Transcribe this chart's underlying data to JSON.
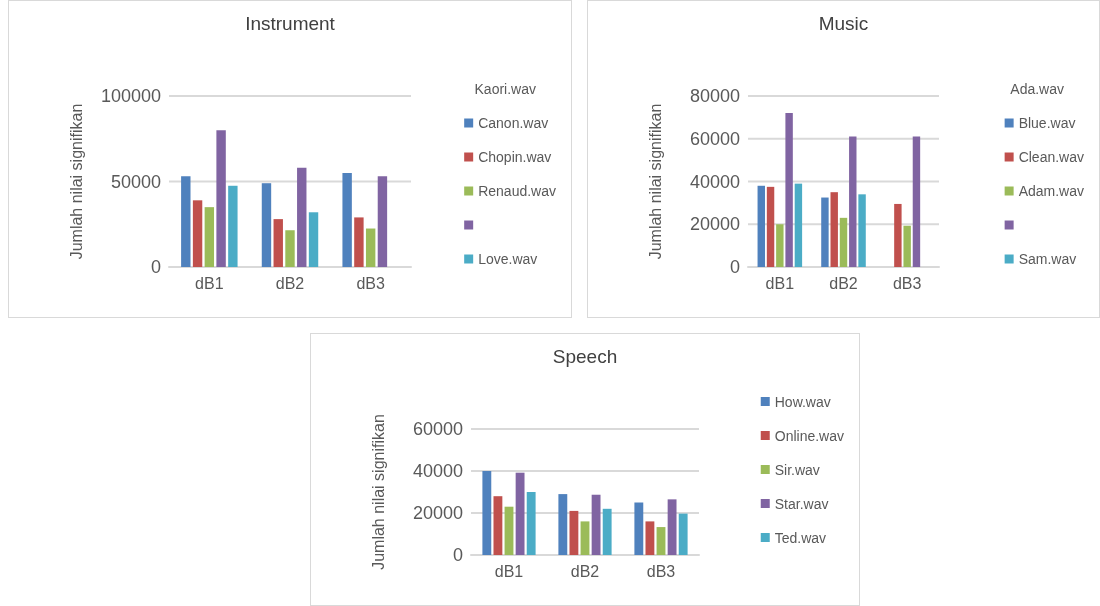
{
  "chart_data": [
    {
      "type": "bar",
      "title": "Instrument",
      "ylabel": "Jumlah nilai signifikan",
      "legend_title": "Kaori.wav",
      "categories": [
        "dB1",
        "dB2",
        "dB3"
      ],
      "series": [
        {
          "name": "Canon.wav",
          "color": "#4f81bd",
          "values": [
            53000,
            49000,
            55000
          ]
        },
        {
          "name": "Chopin.wav",
          "color": "#c0504d",
          "values": [
            39000,
            28000,
            29000
          ]
        },
        {
          "name": "Renaud.wav",
          "color": "#9bbb59",
          "values": [
            35000,
            21500,
            22500
          ]
        },
        {
          "color": "#8064a2",
          "values": [
            80000,
            58000,
            53000
          ]
        },
        {
          "name": "Love.wav",
          "color": "#4bacc6",
          "values": [
            47500,
            32000,
            null
          ]
        }
      ],
      "ylim": [
        0,
        100000
      ],
      "yticks": [
        0,
        50000,
        100000
      ],
      "grid": "y",
      "legend": "right"
    },
    {
      "type": "bar",
      "title": "Music",
      "ylabel": "Jumlah nilai signifikan",
      "legend_title": "Ada.wav",
      "categories": [
        "dB1",
        "dB2",
        "dB3"
      ],
      "series": [
        {
          "name": "Blue.wav",
          "color": "#4f81bd",
          "values": [
            38000,
            32500,
            null
          ]
        },
        {
          "name": "Clean.wav",
          "color": "#c0504d",
          "values": [
            37500,
            35000,
            29500
          ]
        },
        {
          "name": "Adam.wav",
          "color": "#9bbb59",
          "values": [
            20000,
            23000,
            19300
          ]
        },
        {
          "color": "#8064a2",
          "values": [
            72000,
            61000,
            61000
          ]
        },
        {
          "name": "Sam.wav",
          "color": "#4bacc6",
          "values": [
            39000,
            34000,
            null
          ]
        }
      ],
      "ylim": [
        0,
        80000
      ],
      "yticks": [
        0,
        20000,
        40000,
        60000,
        80000
      ],
      "grid": "y",
      "legend": "right"
    },
    {
      "type": "bar",
      "title": "Speech",
      "ylabel": "Jumlah nilai signifikan",
      "categories": [
        "dB1",
        "dB2",
        "dB3"
      ],
      "series": [
        {
          "name": "How.wav",
          "color": "#4f81bd",
          "values": [
            40000,
            29000,
            25000
          ]
        },
        {
          "name": "Online.wav",
          "color": "#c0504d",
          "values": [
            28000,
            21000,
            16000
          ]
        },
        {
          "name": "Sir.wav",
          "color": "#9bbb59",
          "values": [
            23000,
            16000,
            13300
          ]
        },
        {
          "name": "Star.wav",
          "color": "#8064a2",
          "values": [
            39200,
            28700,
            26500
          ]
        },
        {
          "name": "Ted.wav",
          "color": "#4bacc6",
          "values": [
            30000,
            22000,
            19700
          ]
        }
      ],
      "ylim": [
        0,
        60000
      ],
      "yticks": [
        0,
        20000,
        40000,
        60000
      ],
      "grid": "y",
      "legend": "right"
    }
  ]
}
